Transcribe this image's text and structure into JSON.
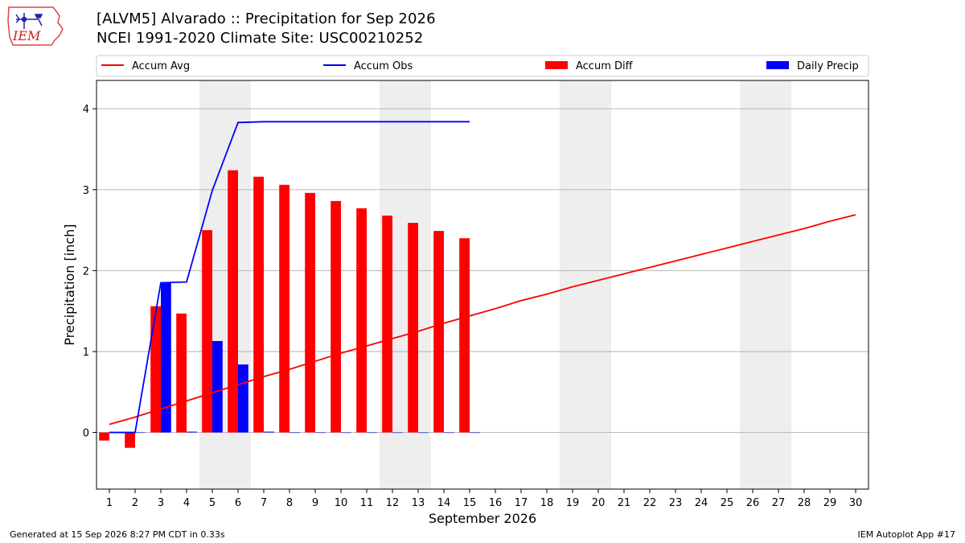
{
  "header": {
    "title_line1": "[ALVM5] Alvarado :: Precipitation for Sep 2026",
    "title_line2": "NCEI 1991-2020 Climate Site: USC00210252"
  },
  "logo": {
    "text": "IEM",
    "icon": "iem-iowa-logo"
  },
  "footer": {
    "generated": "Generated at 15 Sep 2026 8:27 PM CDT in 0.33s",
    "app": "IEM Autoplot App #17"
  },
  "chart_data": {
    "type": "bar",
    "xlabel": "September 2026",
    "ylabel": "Precipitation [inch]",
    "xlim": [
      0.5,
      30.5
    ],
    "ylim": [
      -0.7,
      4.35
    ],
    "yticks": [
      0,
      1,
      2,
      3,
      4
    ],
    "x": [
      1,
      2,
      3,
      4,
      5,
      6,
      7,
      8,
      9,
      10,
      11,
      12,
      13,
      14,
      15,
      16,
      17,
      18,
      19,
      20,
      21,
      22,
      23,
      24,
      25,
      26,
      27,
      28,
      29,
      30
    ],
    "weekend_shading": [
      [
        4.5,
        6.5
      ],
      [
        11.5,
        13.5
      ],
      [
        18.5,
        20.5
      ],
      [
        25.5,
        27.5
      ]
    ],
    "grid": "y",
    "legend_placement": "top, outside plot, single row",
    "series": [
      {
        "name": "Accum Avg",
        "kind": "line",
        "color": "#ff0000",
        "x": [
          1,
          2,
          3,
          4,
          5,
          6,
          7,
          8,
          9,
          10,
          11,
          12,
          13,
          14,
          15,
          16,
          17,
          18,
          19,
          20,
          21,
          22,
          23,
          24,
          25,
          26,
          27,
          28,
          29,
          30
        ],
        "values": [
          0.1,
          0.19,
          0.29,
          0.39,
          0.49,
          0.59,
          0.69,
          0.78,
          0.88,
          0.98,
          1.07,
          1.16,
          1.25,
          1.35,
          1.44,
          1.53,
          1.63,
          1.71,
          1.8,
          1.88,
          1.96,
          2.04,
          2.12,
          2.2,
          2.28,
          2.36,
          2.44,
          2.52,
          2.61,
          2.69
        ]
      },
      {
        "name": "Accum Obs",
        "kind": "line",
        "color": "#0000ff",
        "x": [
          1,
          2,
          3,
          4,
          5,
          6,
          7,
          8,
          9,
          10,
          11,
          12,
          13,
          14,
          15
        ],
        "values": [
          0.0,
          0.0,
          1.85,
          1.86,
          2.99,
          3.83,
          3.84,
          3.84,
          3.84,
          3.84,
          3.84,
          3.84,
          3.84,
          3.84,
          3.84
        ]
      },
      {
        "name": "Accum Diff",
        "kind": "bar",
        "color": "#ff0000",
        "offset": -0.2,
        "x": [
          1,
          2,
          3,
          4,
          5,
          6,
          7,
          8,
          9,
          10,
          11,
          12,
          13,
          14,
          15
        ],
        "values": [
          -0.1,
          -0.19,
          1.56,
          1.47,
          2.5,
          3.24,
          3.16,
          3.06,
          2.96,
          2.86,
          2.77,
          2.68,
          2.59,
          2.49,
          2.4
        ]
      },
      {
        "name": "Daily Precip",
        "kind": "bar",
        "color": "#0000ff",
        "offset": 0.2,
        "x": [
          1,
          2,
          3,
          4,
          5,
          6,
          7,
          8,
          9,
          10,
          11,
          12,
          13,
          14,
          15
        ],
        "values": [
          0.0,
          0.0,
          1.85,
          0.01,
          1.13,
          0.84,
          0.01,
          0.0,
          0.0,
          0.0,
          0.0,
          0.0,
          0.0,
          0.0,
          0.0
        ]
      }
    ]
  }
}
